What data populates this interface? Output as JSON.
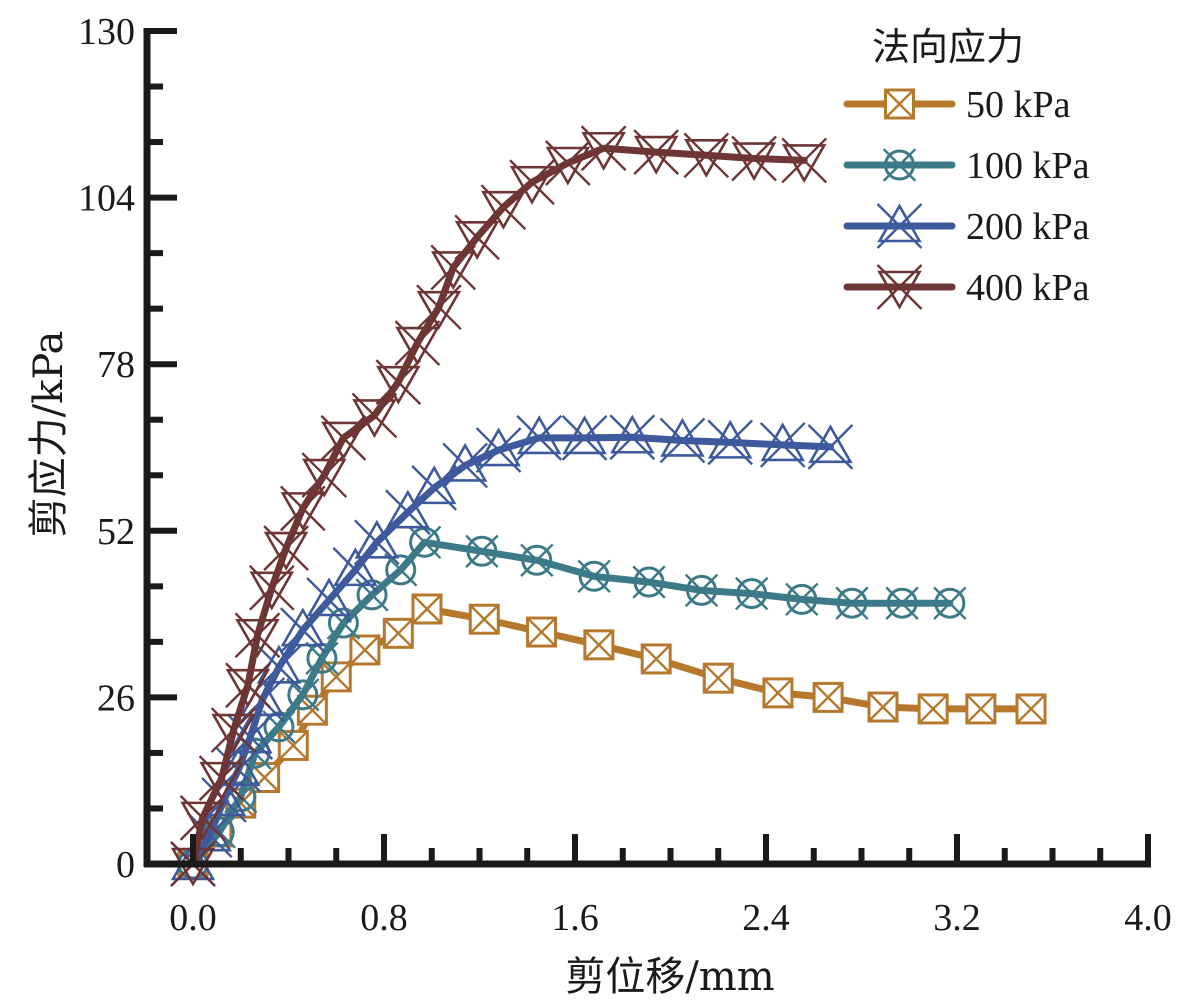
{
  "chart_data": {
    "type": "line",
    "title": "",
    "xlabel": "剪位移/mm",
    "ylabel": "剪应力/kPa",
    "xlim": [
      -0.19,
      4.0
    ],
    "ylim": [
      0,
      130
    ],
    "xticks": [
      0.0,
      0.8,
      1.6,
      2.4,
      3.2,
      4.0
    ],
    "xtick_labels": [
      "0.0",
      "0.8",
      "1.6",
      "2.4",
      "3.2",
      "4.0"
    ],
    "x_minor_step": 0.2,
    "yticks": [
      0,
      26,
      52,
      78,
      104,
      130
    ],
    "ytick_labels": [
      "0",
      "26",
      "52",
      "78",
      "104",
      "130"
    ],
    "y_minor_step": 8.6667,
    "grid": false,
    "legend": {
      "title": "法向应力",
      "position": "top-right"
    },
    "series": [
      {
        "name": "50 kPa",
        "color": "#b5782c",
        "marker": "square-x",
        "x": [
          0.0,
          0.1,
          0.2,
          0.3,
          0.42,
          0.5,
          0.6,
          0.72,
          0.86,
          0.98,
          1.22,
          1.46,
          1.7,
          1.94,
          2.2,
          2.45,
          2.66,
          2.89,
          3.1,
          3.3,
          3.51
        ],
        "y": [
          0.0,
          5.0,
          9.5,
          13.5,
          18.5,
          24.0,
          29.2,
          33.4,
          36.0,
          39.8,
          38.2,
          36.2,
          34.2,
          32.0,
          29.0,
          26.7,
          26.0,
          24.5,
          24.2,
          24.2,
          24.2
        ]
      },
      {
        "name": "100 kPa",
        "color": "#3d7a88",
        "marker": "circle-x",
        "x": [
          0.0,
          0.11,
          0.2,
          0.26,
          0.36,
          0.46,
          0.54,
          0.63,
          0.75,
          0.87,
          0.97,
          1.21,
          1.44,
          1.68,
          1.91,
          2.13,
          2.34,
          2.55,
          2.76,
          2.97,
          3.17
        ],
        "y": [
          0.0,
          5.0,
          10.5,
          17.3,
          21.4,
          26.4,
          32.1,
          37.6,
          42.0,
          45.9,
          50.2,
          48.8,
          47.4,
          44.9,
          44.0,
          42.7,
          42.2,
          41.3,
          40.7,
          40.7,
          40.7
        ]
      },
      {
        "name": "200 kPa",
        "color": "#3e5a9c",
        "marker": "triangle-up-x",
        "x": [
          0.0,
          0.07,
          0.13,
          0.19,
          0.24,
          0.29,
          0.36,
          0.46,
          0.57,
          0.68,
          0.77,
          0.9,
          1.01,
          1.14,
          1.28,
          1.45,
          1.64,
          1.84,
          2.05,
          2.25,
          2.47,
          2.67
        ],
        "y": [
          0.0,
          4.5,
          10.0,
          14.7,
          19.8,
          25.6,
          30.7,
          36.5,
          41.2,
          45.9,
          50.2,
          54.9,
          58.7,
          62.2,
          64.6,
          66.5,
          66.5,
          66.6,
          66.1,
          65.8,
          65.4,
          65.1
        ]
      },
      {
        "name": "400 kPa",
        "color": "#6e3535",
        "marker": "triangle-down-x",
        "x": [
          0.0,
          0.04,
          0.12,
          0.17,
          0.23,
          0.27,
          0.33,
          0.39,
          0.46,
          0.55,
          0.63,
          0.76,
          0.86,
          0.94,
          1.03,
          1.09,
          1.19,
          1.3,
          1.42,
          1.57,
          1.72,
          1.94,
          2.15,
          2.35,
          2.56
        ],
        "y": [
          0.0,
          7.2,
          13.4,
          20.9,
          27.9,
          35.7,
          43.1,
          49.3,
          55.5,
          60.7,
          66.5,
          70.0,
          75.2,
          81.3,
          86.9,
          93.1,
          97.8,
          102.5,
          106.4,
          109.4,
          111.7,
          111.1,
          110.6,
          110.1,
          109.8
        ]
      }
    ]
  }
}
